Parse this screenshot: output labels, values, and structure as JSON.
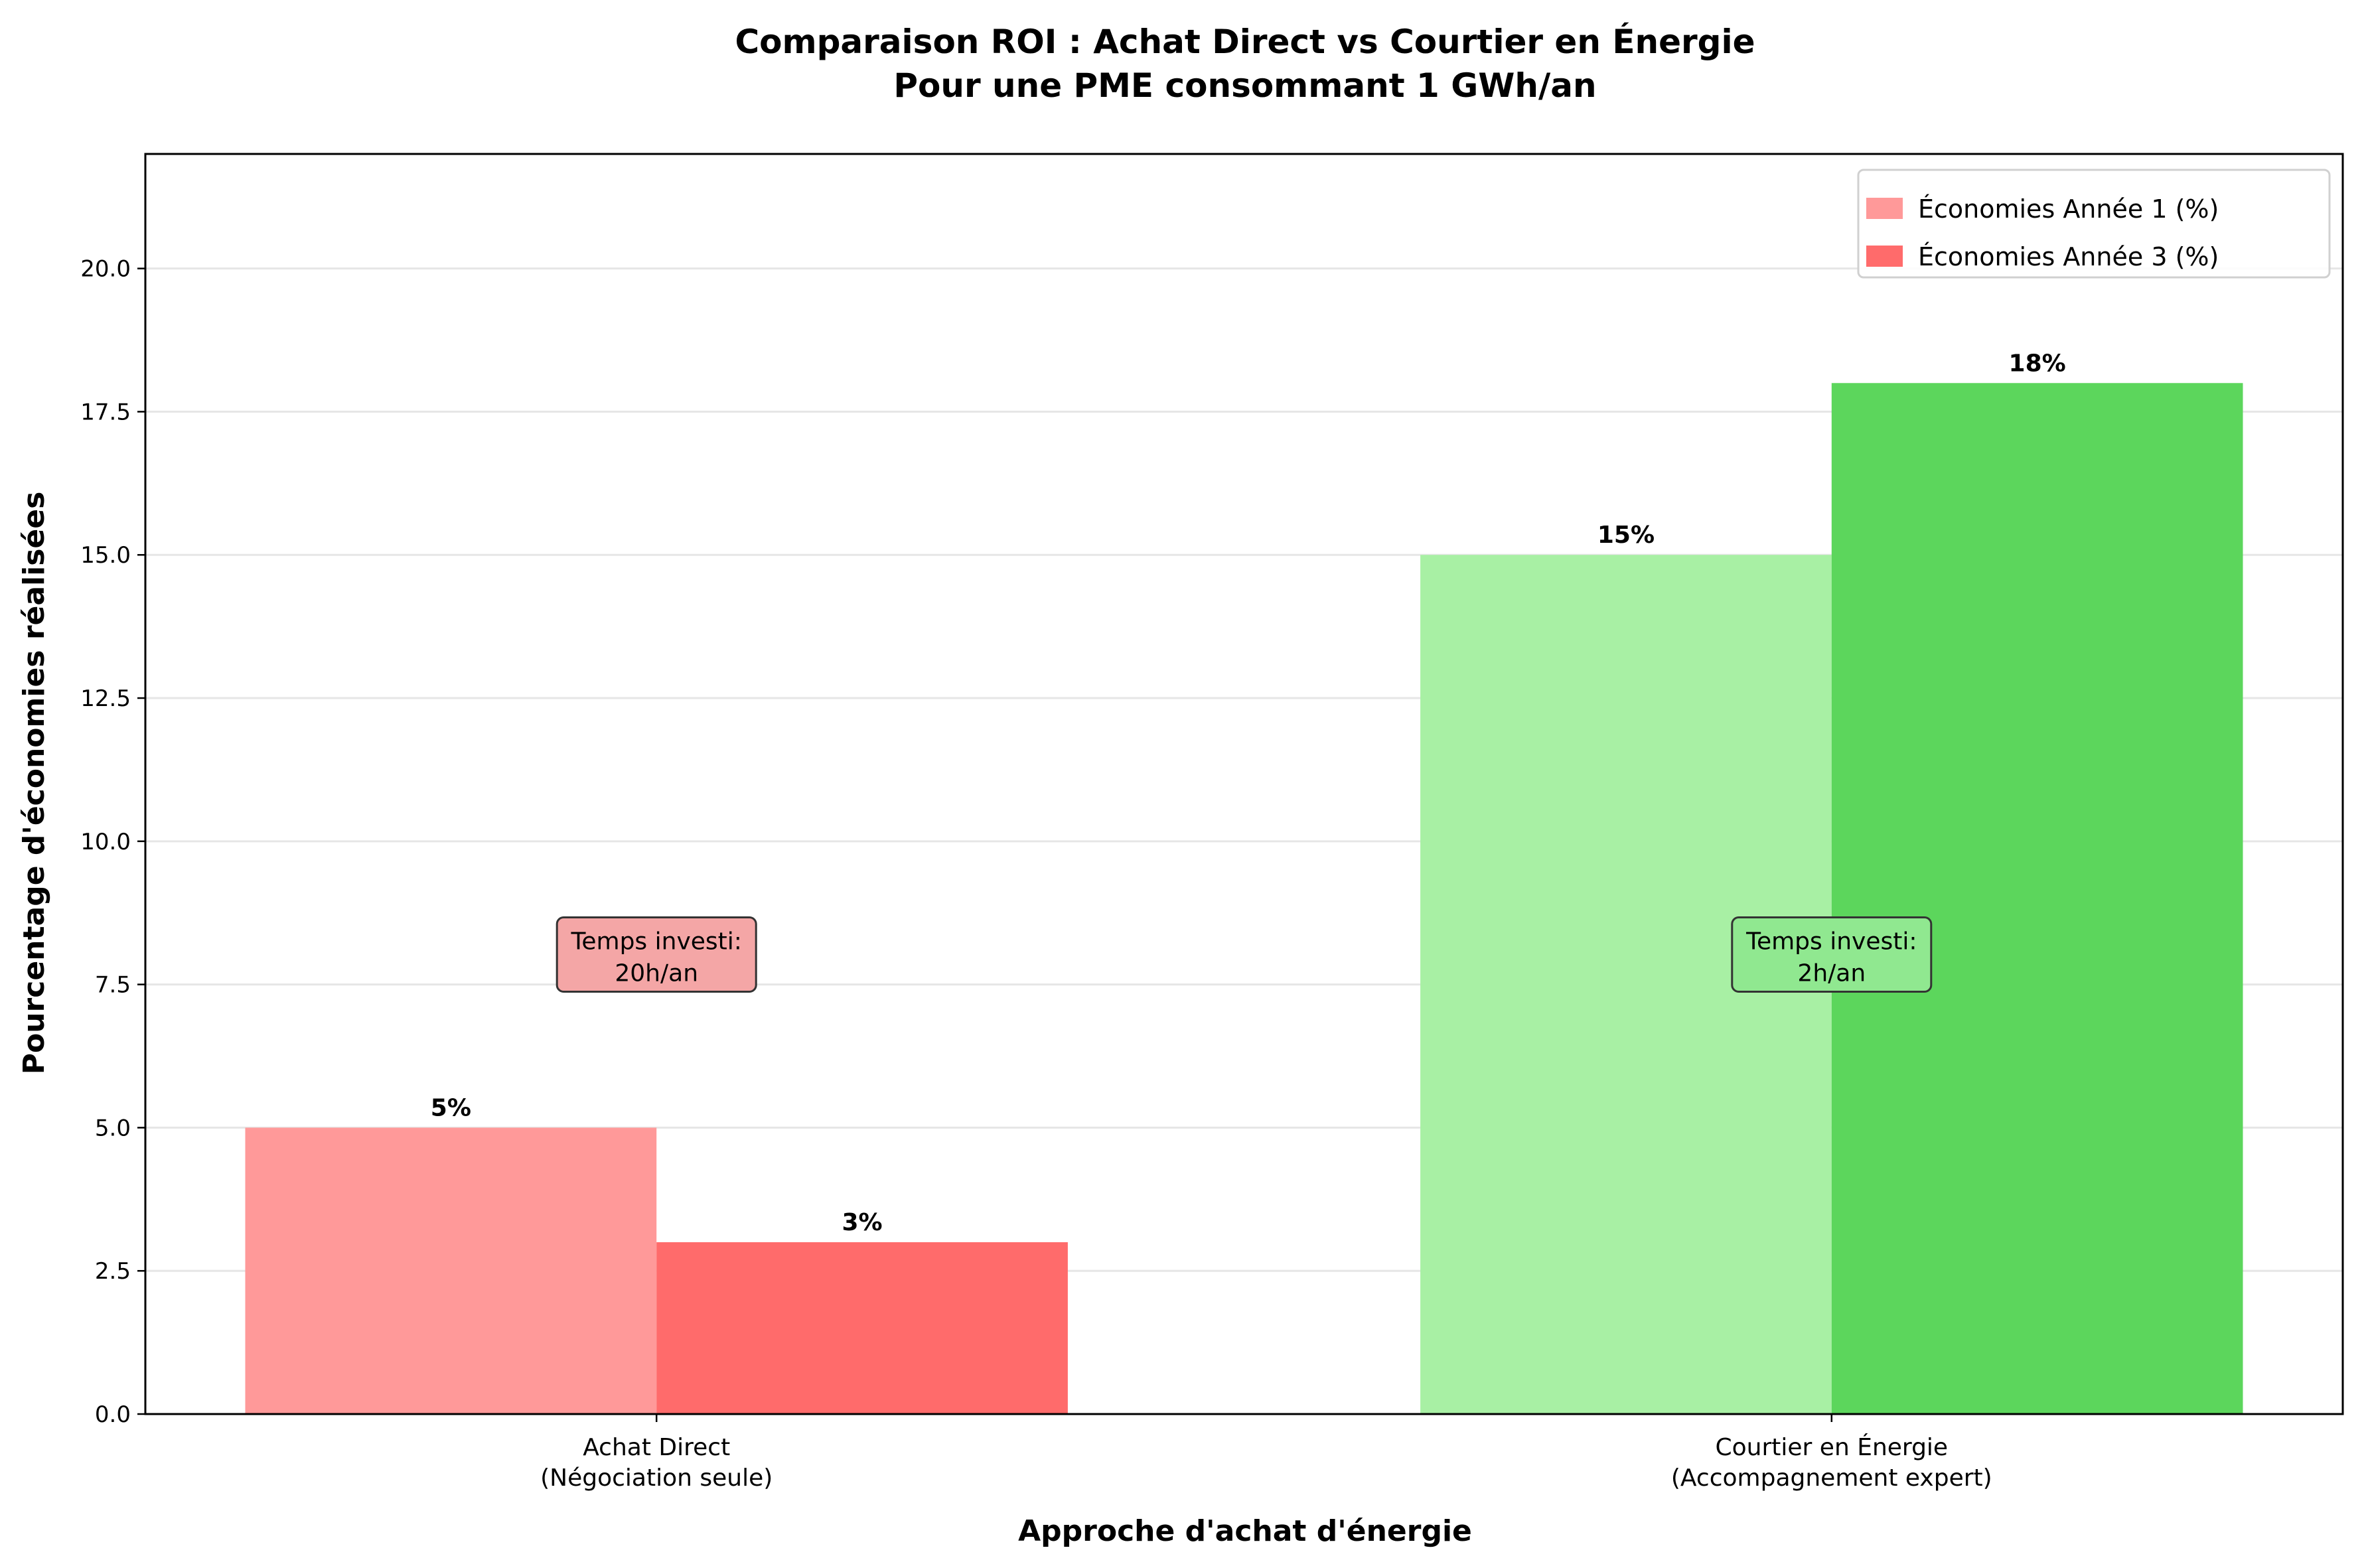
{
  "chart_data": {
    "type": "bar",
    "title": "Comparaison ROI : Achat Direct vs Courtier en Énergie",
    "subtitle": "Pour une PME consommant 1 GWh/an",
    "xlabel": "Approche d'achat d'énergie",
    "ylabel": "Pourcentage d'économies réalisées",
    "categories": [
      [
        "Achat Direct",
        "(Négociation seule)"
      ],
      [
        "Courtier en Énergie",
        "(Accompagnement expert)"
      ]
    ],
    "series": [
      {
        "name": "Économies Année 1 (%)",
        "values": [
          5,
          15
        ],
        "colors": [
          "#ff9999",
          "#a8f0a4"
        ],
        "labels": [
          "5%",
          "15%"
        ]
      },
      {
        "name": "Économies Année 3 (%)",
        "values": [
          3,
          18
        ],
        "colors": [
          "#ff6b6b",
          "#5cd65c"
        ],
        "labels": [
          "3%",
          "18%"
        ]
      }
    ],
    "ylim": [
      0,
      22
    ],
    "yticks": [
      "0.0",
      "2.5",
      "5.0",
      "7.5",
      "10.0",
      "12.5",
      "15.0",
      "17.5",
      "20.0"
    ],
    "grid": "y",
    "legend_position": "top-right",
    "annotations": [
      {
        "lines": [
          "Temps investi:",
          "20h/an"
        ],
        "category": 0,
        "y": 8,
        "color": "#f4a6a6"
      },
      {
        "lines": [
          "Temps investi:",
          "2h/an"
        ],
        "category": 1,
        "y": 8,
        "color": "#90e890"
      }
    ]
  }
}
